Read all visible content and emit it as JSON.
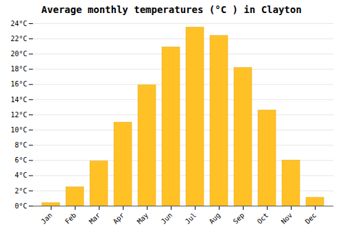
{
  "chart_data": {
    "type": "bar",
    "title": "Average monthly temperatures (°C ) in Clayton",
    "categories": [
      "Jan",
      "Feb",
      "Mar",
      "Apr",
      "May",
      "Jun",
      "Jul",
      "Aug",
      "Sep",
      "Oct",
      "Nov",
      "Dec"
    ],
    "values": [
      0.4,
      2.5,
      5.9,
      11.0,
      15.9,
      20.9,
      23.5,
      22.4,
      18.2,
      12.6,
      6.0,
      1.1
    ],
    "color": "#FFC125",
    "ylim": [
      0,
      24
    ],
    "yticks": [
      {
        "value": 0,
        "label": "0°C"
      },
      {
        "value": 2,
        "label": "2°C"
      },
      {
        "value": 4,
        "label": "4°C"
      },
      {
        "value": 6,
        "label": "6°C"
      },
      {
        "value": 8,
        "label": "8°C"
      },
      {
        "value": 10,
        "label": "10°C"
      },
      {
        "value": 12,
        "label": "12°C"
      },
      {
        "value": 14,
        "label": "14°C"
      },
      {
        "value": 16,
        "label": "16°C"
      },
      {
        "value": 18,
        "label": "18°C"
      },
      {
        "value": 20,
        "label": "20°C"
      },
      {
        "value": 22,
        "label": "22°C"
      },
      {
        "value": 24,
        "label": "24°C"
      }
    ],
    "grid": true
  }
}
